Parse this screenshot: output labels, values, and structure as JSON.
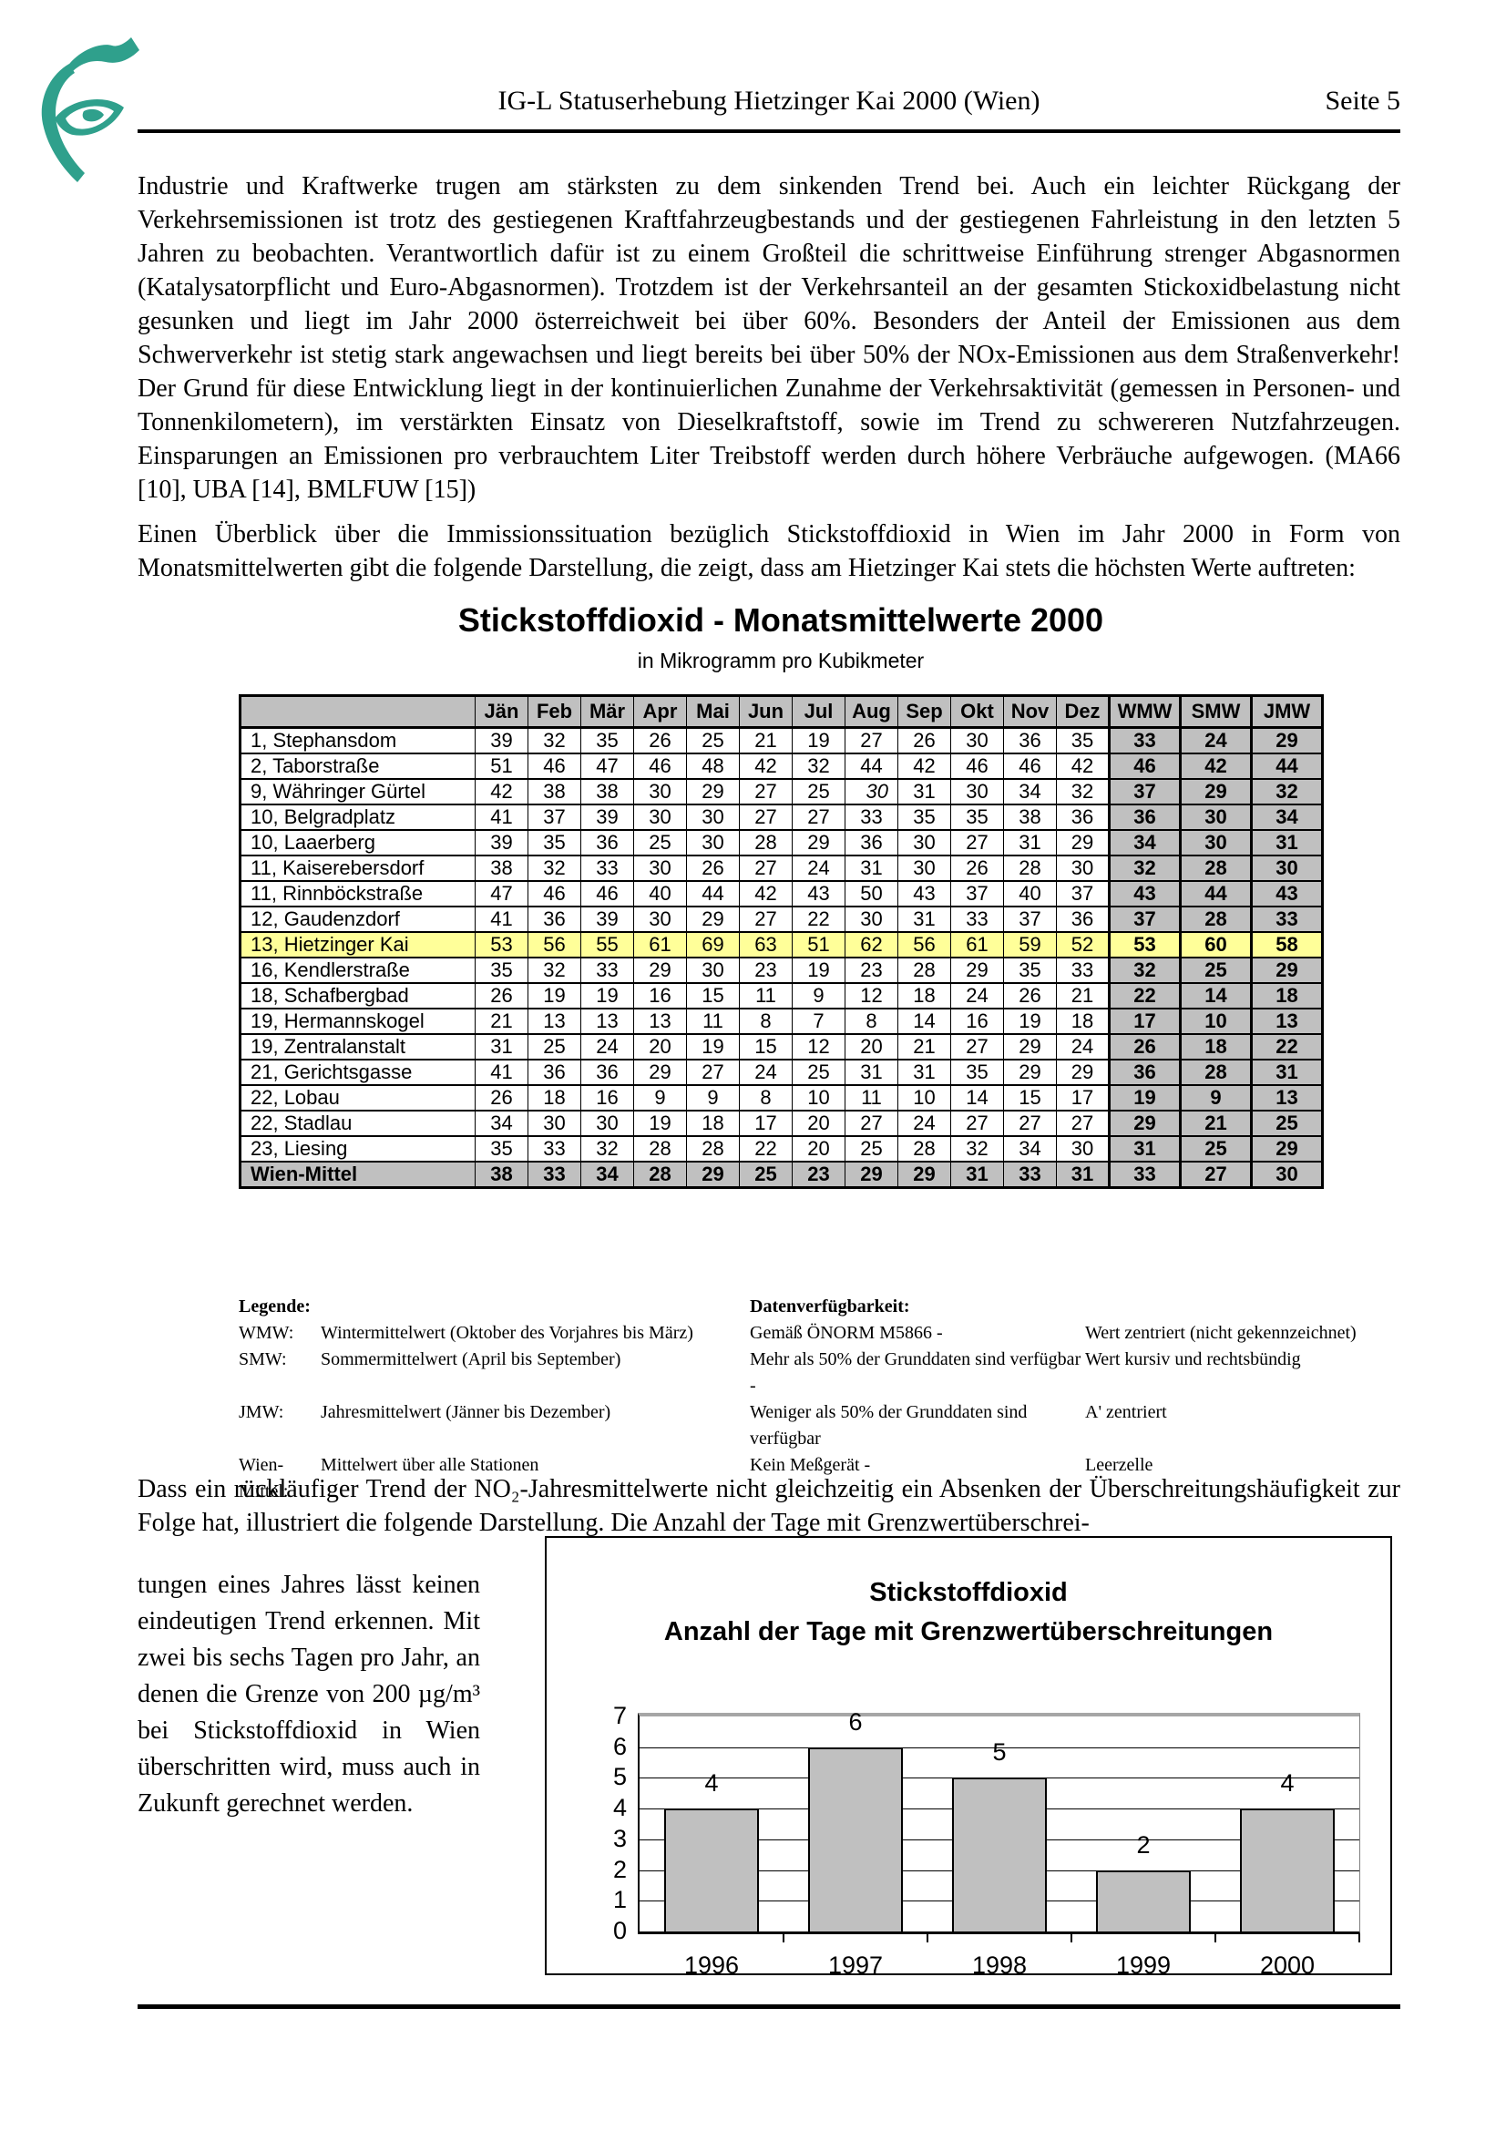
{
  "header": {
    "title": "IG-L Statuserhebung Hietzinger Kai 2000 (Wien)",
    "page": "Seite 5",
    "logo": "eye-swoosh-logo",
    "logo_color": "#2FA08C"
  },
  "paragraphs": {
    "p1": "Industrie und Kraftwerke trugen am stärksten zu dem sinkenden Trend bei. Auch ein leichter Rückgang der Verkehrsemissionen ist trotz des gestiegenen Kraftfahrzeugbestands und der gestiegenen Fahrleistung in den letzten 5 Jahren zu beobachten. Verantwortlich dafür ist zu einem Großteil die schrittweise Einführung strenger Abgasnormen (Katalysatorpflicht und Euro-Abgasnormen). Trotzdem ist der Verkehrsanteil an der gesamten Stickoxidbelastung nicht gesunken und liegt im Jahr 2000 österreichweit bei über 60%. Besonders der Anteil der Emissionen aus dem Schwerverkehr ist stetig stark angewachsen und liegt bereits bei über 50% der NOx-Emissionen aus dem Straßenverkehr! Der Grund für diese Entwicklung liegt in der kontinuierlichen Zunahme der Verkehrsaktivität (gemessen in Personen- und Tonnenkilometern), im verstärkten Einsatz von Dieselkraftstoff, sowie im Trend zu schwereren Nutzfahrzeugen. Einsparungen an Emissionen pro verbrauchtem Liter Treibstoff werden durch höhere Verbräuche aufgewogen. (MA66 [10], UBA [14], BMLFUW [15])",
    "p2": "Einen Überblick über die Immissionssituation bezüglich Stickstoffdioxid in Wien im Jahr 2000 in Form von Monatsmittelwerten gibt die folgende Darstellung, die zeigt, dass am Hietzinger Kai stets die höchsten Werte auftreten:",
    "p3a": "Dass ein rückläufiger Trend der NO₂-Jahresmittelwerte nicht gleichzeitig ein Absenken der Überschreitungshäufigkeit zur Folge hat, illustriert die folgende Darstellung. Die Anzahl der Tage mit Grenzwertüberschrei-",
    "p3b": "tungen eines Jahres lässt keinen eindeutigen Trend erkennen. Mit zwei bis sechs Tagen pro Jahr, an denen die Grenze von 200 µg/m³ bei Stickstoffdioxid in Wien überschritten wird, muss auch in Zukunft gerechnet werden."
  },
  "no2_table": {
    "title": "Stickstoffdioxid - Monatsmittelwerte 2000",
    "subtitle": "in Mikrogramm pro Kubikmeter",
    "columns": [
      "Jän",
      "Feb",
      "Mär",
      "Apr",
      "Mai",
      "Jun",
      "Jul",
      "Aug",
      "Sep",
      "Okt",
      "Nov",
      "Dez",
      "WMW",
      "SMW",
      "JMW"
    ],
    "highlight_color": "#FFFF99",
    "header_color": "#C0C0C0",
    "rows": [
      {
        "name": "1, Stephansdom",
        "values": [
          39,
          32,
          35,
          26,
          25,
          21,
          19,
          27,
          26,
          30,
          36,
          35,
          33,
          24,
          29
        ]
      },
      {
        "name": "2, Taborstraße",
        "values": [
          51,
          46,
          47,
          46,
          48,
          42,
          32,
          44,
          42,
          46,
          46,
          42,
          46,
          42,
          44
        ]
      },
      {
        "name": "9, Währinger Gürtel",
        "values": [
          42,
          38,
          38,
          30,
          29,
          27,
          25,
          30,
          31,
          30,
          34,
          32,
          37,
          29,
          32
        ],
        "italics": [
          7
        ]
      },
      {
        "name": "10, Belgradplatz",
        "values": [
          41,
          37,
          39,
          30,
          30,
          27,
          27,
          33,
          35,
          35,
          38,
          36,
          36,
          30,
          34
        ]
      },
      {
        "name": "10, Laaerberg",
        "values": [
          39,
          35,
          36,
          25,
          30,
          28,
          29,
          36,
          30,
          27,
          31,
          29,
          34,
          30,
          31
        ]
      },
      {
        "name": "11, Kaiserebersdorf",
        "values": [
          38,
          32,
          33,
          30,
          26,
          27,
          24,
          31,
          30,
          26,
          28,
          30,
          32,
          28,
          30
        ]
      },
      {
        "name": "11, Rinnböckstraße",
        "values": [
          47,
          46,
          46,
          40,
          44,
          42,
          43,
          50,
          43,
          37,
          40,
          37,
          43,
          44,
          43
        ]
      },
      {
        "name": "12, Gaudenzdorf",
        "values": [
          41,
          36,
          39,
          30,
          29,
          27,
          22,
          30,
          31,
          33,
          37,
          36,
          37,
          28,
          33
        ]
      },
      {
        "name": "13, Hietzinger Kai",
        "values": [
          53,
          56,
          55,
          61,
          69,
          63,
          51,
          62,
          56,
          61,
          59,
          52,
          53,
          60,
          58
        ],
        "highlight": true
      },
      {
        "name": "16, Kendlerstraße",
        "values": [
          35,
          32,
          33,
          29,
          30,
          23,
          19,
          23,
          28,
          29,
          35,
          33,
          32,
          25,
          29
        ]
      },
      {
        "name": "18, Schafbergbad",
        "values": [
          26,
          19,
          19,
          16,
          15,
          11,
          9,
          12,
          18,
          24,
          26,
          21,
          22,
          14,
          18
        ]
      },
      {
        "name": "19, Hermannskogel",
        "values": [
          21,
          13,
          13,
          13,
          11,
          8,
          7,
          8,
          14,
          16,
          19,
          18,
          17,
          10,
          13
        ]
      },
      {
        "name": "19, Zentralanstalt",
        "values": [
          31,
          25,
          24,
          20,
          19,
          15,
          12,
          20,
          21,
          27,
          29,
          24,
          26,
          18,
          22
        ]
      },
      {
        "name": "21, Gerichtsgasse",
        "values": [
          41,
          36,
          36,
          29,
          27,
          24,
          25,
          31,
          31,
          35,
          29,
          29,
          36,
          28,
          31
        ]
      },
      {
        "name": "22, Lobau",
        "values": [
          26,
          18,
          16,
          9,
          9,
          8,
          10,
          11,
          10,
          14,
          15,
          17,
          19,
          9,
          13
        ]
      },
      {
        "name": "22, Stadlau",
        "values": [
          34,
          30,
          30,
          19,
          18,
          17,
          20,
          27,
          24,
          27,
          27,
          27,
          29,
          21,
          25
        ]
      },
      {
        "name": "23, Liesing",
        "values": [
          35,
          33,
          32,
          28,
          28,
          22,
          20,
          25,
          28,
          32,
          34,
          30,
          31,
          25,
          29
        ]
      },
      {
        "name": "Wien-Mittel",
        "values": [
          38,
          33,
          34,
          28,
          29,
          25,
          23,
          29,
          29,
          31,
          33,
          31,
          33,
          27,
          30
        ],
        "total": true
      }
    ]
  },
  "legend": {
    "rows": [
      {
        "k": "Legende:",
        "d": "",
        "r": "Datenverfügbarkeit:",
        "s": "",
        "head": true
      },
      {
        "k": "WMW:",
        "d": "Wintermittelwert (Oktober des Vorjahres bis März)",
        "r": "Gemäß ÖNORM M5866 -",
        "s": "Wert zentriert (nicht gekennzeichnet)"
      },
      {
        "k": "SMW:",
        "d": "Sommermittelwert (April bis September)",
        "r": "Mehr als 50% der Grunddaten sind verfügbar -",
        "s": "Wert kursiv und rechtsbündig"
      },
      {
        "k": "JMW:",
        "d": "Jahresmittelwert (Jänner bis Dezember)",
        "r": "Weniger als 50% der Grunddaten sind verfügbar",
        "s": "A' zentriert"
      },
      {
        "k": "Wien-Mittel:",
        "d": "Mittelwert über alle Stationen",
        "r": "Kein Meßgerät -",
        "s": "Leerzelle"
      }
    ]
  },
  "chart_data": {
    "type": "bar",
    "title": "Stickstoffdioxid",
    "subtitle": "Anzahl der Tage mit Grenzwertüberschreitungen",
    "categories": [
      "1996",
      "1997",
      "1998",
      "1999",
      "2000"
    ],
    "values": [
      4,
      6,
      5,
      2,
      4
    ],
    "ylim": [
      0,
      7
    ],
    "yticks": [
      0,
      1,
      2,
      3,
      4,
      5,
      6,
      7
    ],
    "grid": true,
    "legend_position": "none",
    "data_labels": true,
    "bar_color": "#C0C0C0",
    "bar_border": "#000000"
  }
}
